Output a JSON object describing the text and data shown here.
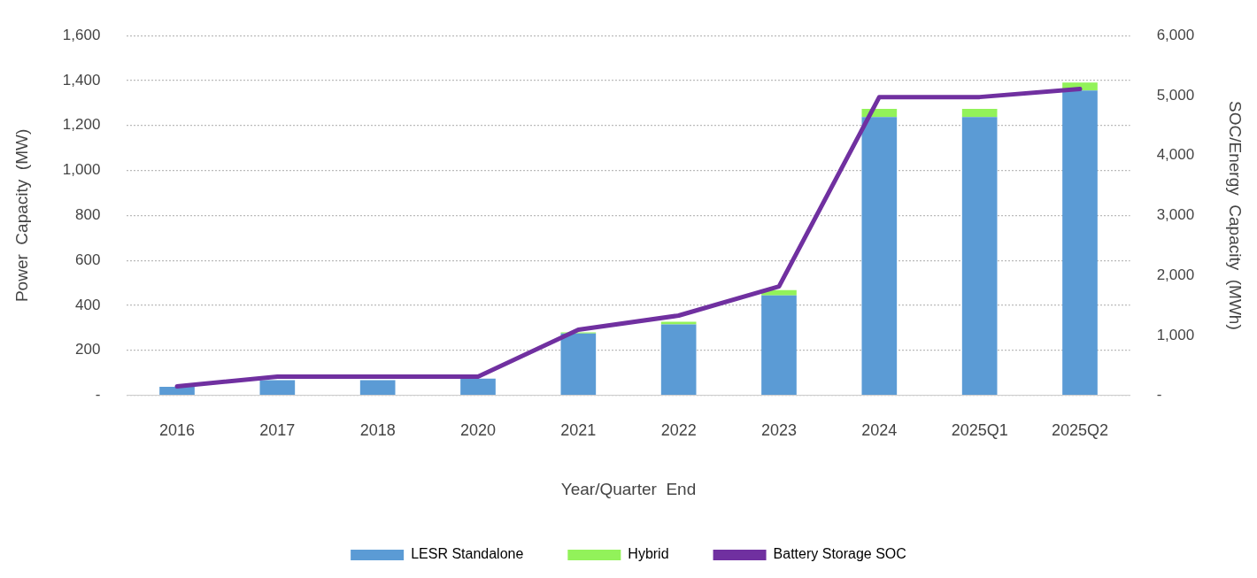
{
  "chart_data": {
    "type": "bar",
    "stacked": true,
    "xlabel": "Year/Quarter  End",
    "ylabel": "Power  Capacity  (MW)",
    "y2label": "SOC/Energy  Capacity  (MWh)",
    "categories": [
      "2016",
      "2017",
      "2018",
      "2020",
      "2021",
      "2022",
      "2023",
      "2024",
      "2025Q1",
      "2025Q2"
    ],
    "series": [
      {
        "name": "LESR Standalone",
        "color": "#5b9bd5",
        "values": [
          38,
          67,
          67,
          74,
          275,
          315,
          444,
          1238,
          1238,
          1356
        ]
      },
      {
        "name": "Hybrid",
        "color": "#92f25a",
        "values": [
          0,
          0,
          0,
          0,
          5,
          12,
          24,
          36,
          36,
          35
        ]
      },
      {
        "name": "Battery Storage SOC",
        "type": "line",
        "axis": "y2",
        "color": "#7030a0",
        "values": [
          150,
          310,
          310,
          310,
          1095,
          1330,
          1816,
          4975,
          4975,
          5110
        ]
      }
    ],
    "ylim": [
      0,
      1600
    ],
    "yticks": [
      {
        "value": 0,
        "label": "-"
      },
      200,
      400,
      600,
      800,
      {
        "value": 1000,
        "label": "1,000"
      },
      {
        "value": 1200,
        "label": "1,200"
      },
      {
        "value": 1400,
        "label": "1,400"
      },
      {
        "value": 1600,
        "label": "1,600"
      }
    ],
    "y2lim": [
      0,
      6000
    ],
    "y2ticks": [
      {
        "value": 0,
        "label": "-"
      },
      {
        "value": 1000,
        "label": "1,000"
      },
      {
        "value": 2000,
        "label": "2,000"
      },
      {
        "value": 3000,
        "label": "3,000"
      },
      {
        "value": 4000,
        "label": "4,000"
      },
      {
        "value": 5000,
        "label": "5,000"
      },
      {
        "value": 6000,
        "label": "6,000"
      }
    ],
    "grid": "y",
    "legend": "bottom",
    "marker": "none",
    "line_style": "solid"
  }
}
